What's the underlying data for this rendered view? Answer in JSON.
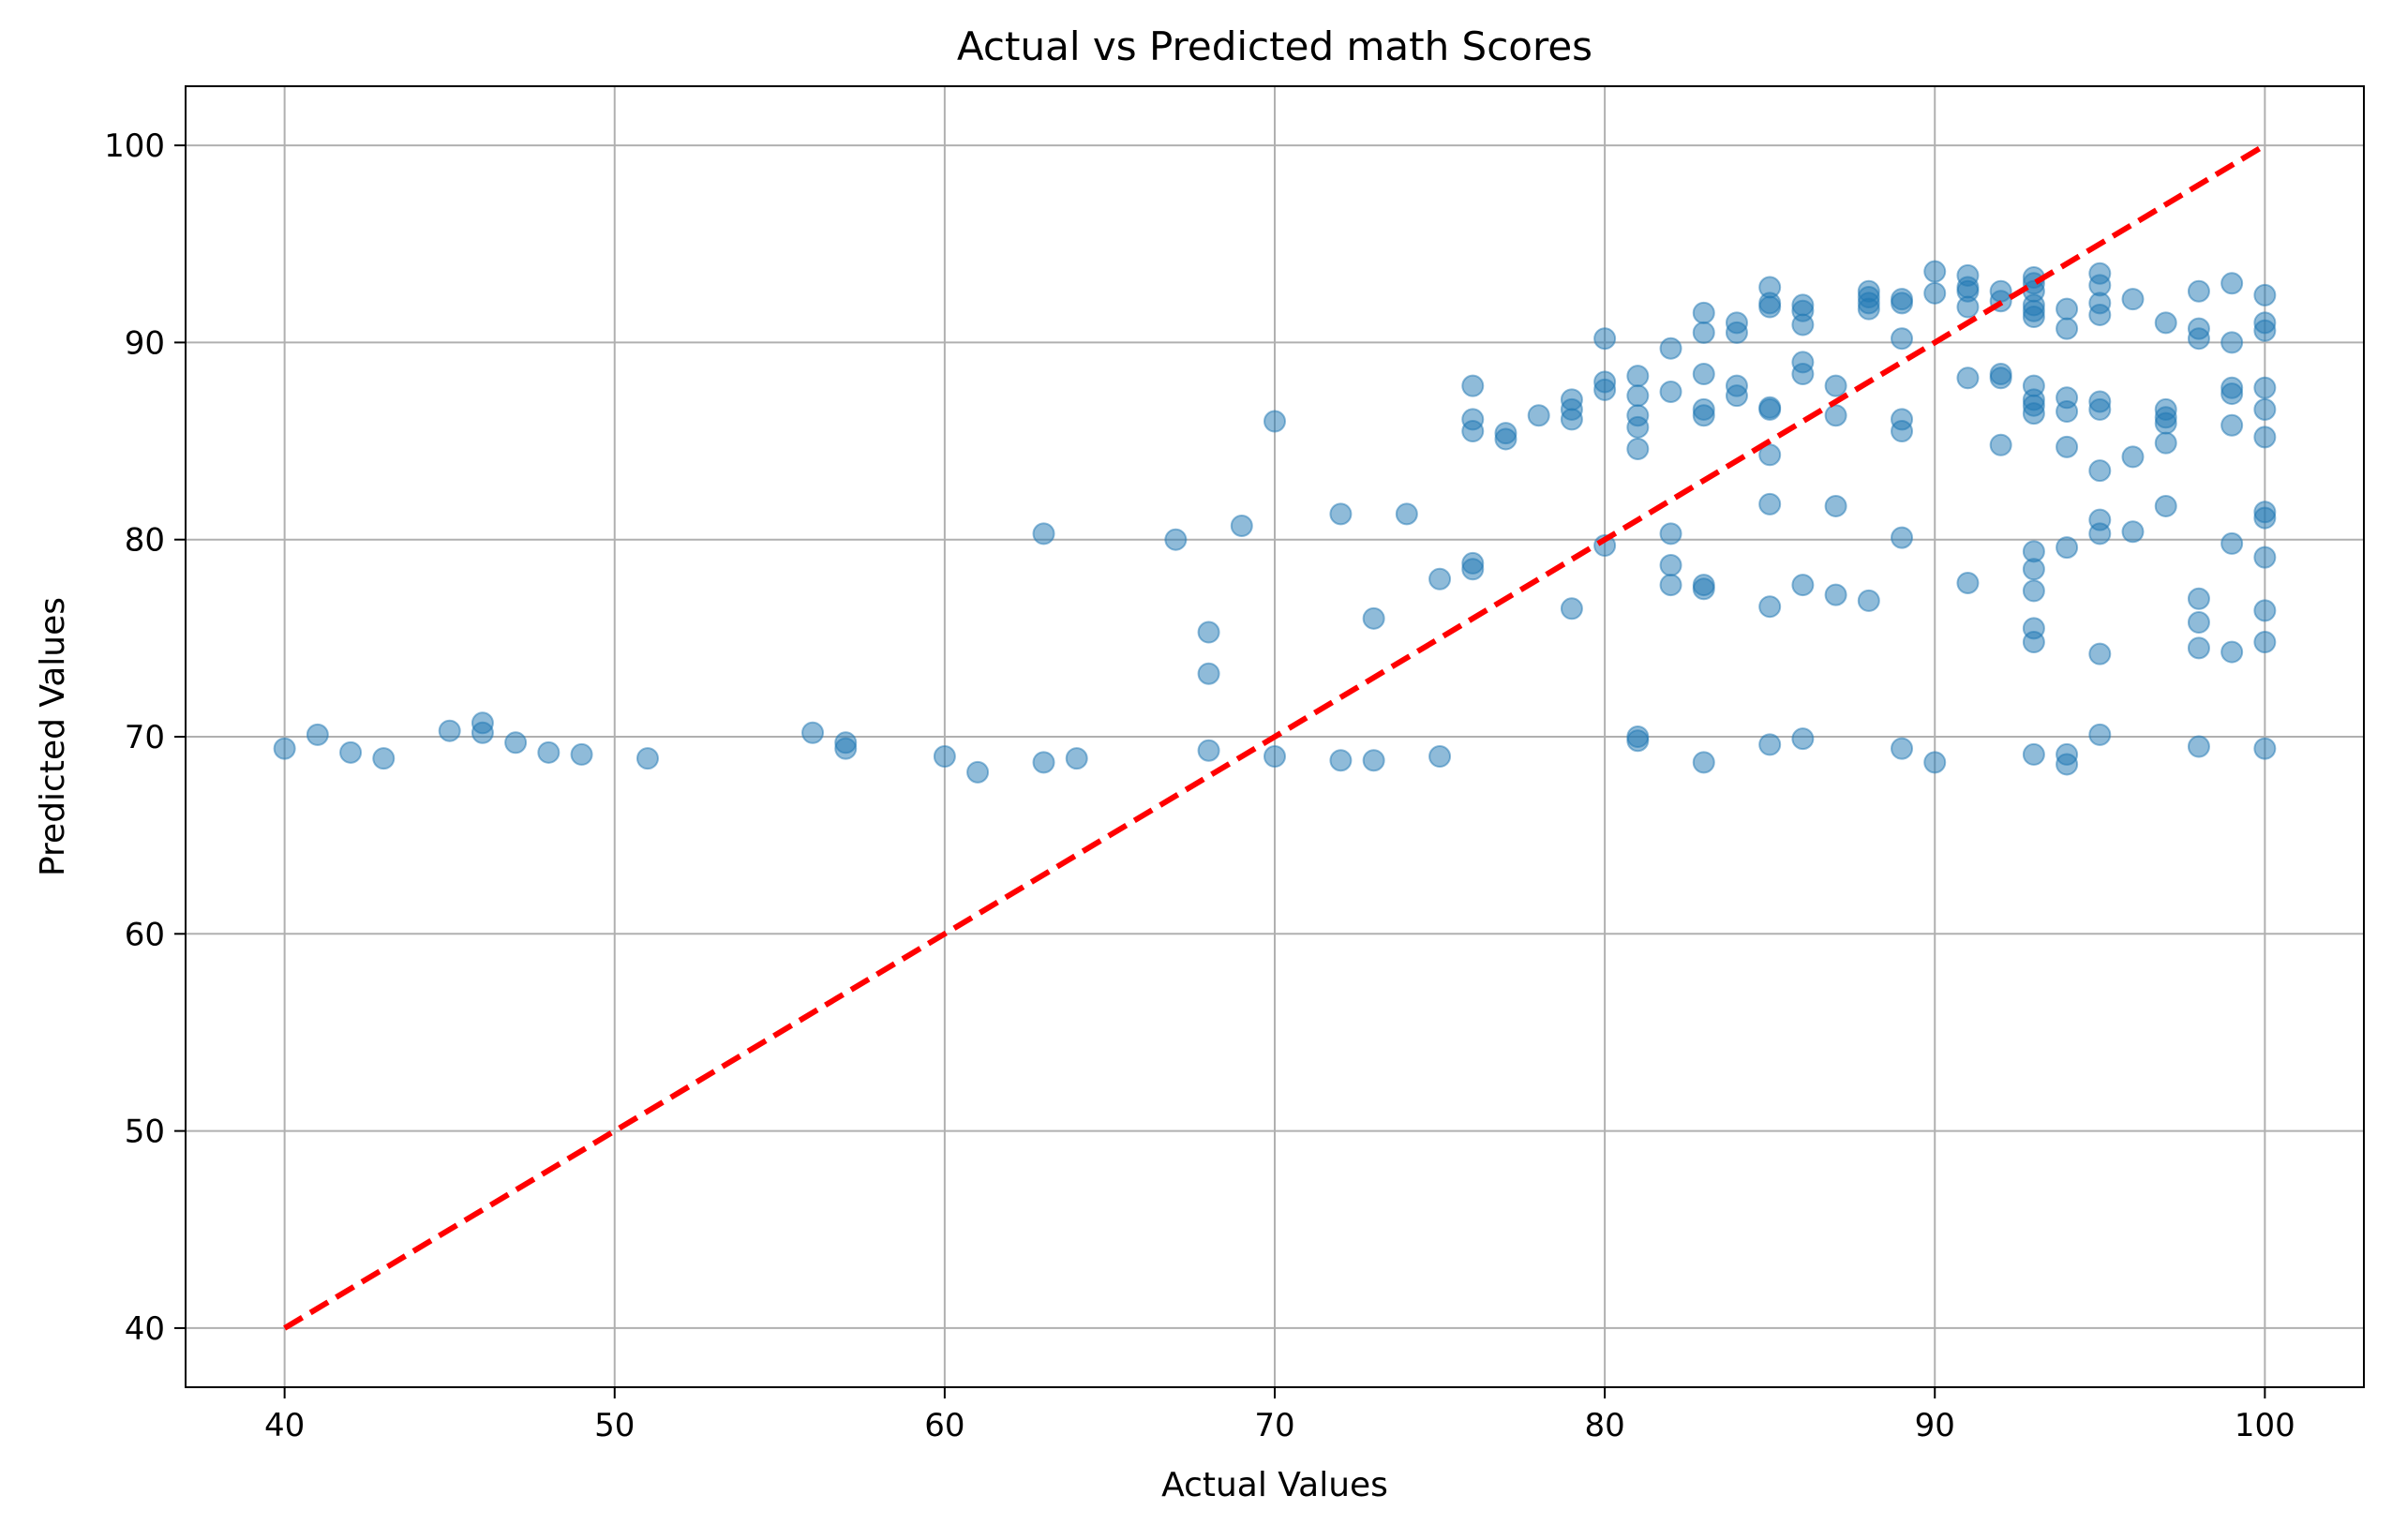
{
  "chart_data": {
    "type": "scatter",
    "title": "Actual vs Predicted math Scores",
    "xlabel": "Actual Values",
    "ylabel": "Predicted Values",
    "xlim": [
      37,
      103
    ],
    "ylim": [
      37,
      103
    ],
    "x_ticks": [
      40,
      50,
      60,
      70,
      80,
      90,
      100
    ],
    "y_ticks": [
      40,
      50,
      60,
      70,
      80,
      90,
      100
    ],
    "grid": true,
    "legend": "none",
    "colors": {
      "points": "#1f77b4",
      "reference_line": "#ff0000",
      "grid": "#b0b0b0"
    },
    "reference_line": {
      "style": "dashed",
      "from": [
        40,
        40
      ],
      "to": [
        100,
        100
      ]
    },
    "series": [
      {
        "points": [
          [
            40,
            69.4
          ],
          [
            41,
            70.1
          ],
          [
            42,
            69.2
          ],
          [
            43,
            68.9
          ],
          [
            45,
            70.3
          ],
          [
            46,
            70.7
          ],
          [
            46,
            70.2
          ],
          [
            47,
            69.7
          ],
          [
            48,
            69.2
          ],
          [
            49,
            69.1
          ],
          [
            51,
            68.9
          ],
          [
            56,
            70.2
          ],
          [
            57,
            69.7
          ],
          [
            57,
            69.4
          ],
          [
            60,
            69.0
          ],
          [
            61,
            68.2
          ],
          [
            63,
            80.3
          ],
          [
            63,
            68.7
          ],
          [
            64,
            68.9
          ],
          [
            67,
            80.0
          ],
          [
            68,
            75.3
          ],
          [
            68,
            73.2
          ],
          [
            68,
            69.3
          ],
          [
            69,
            80.7
          ],
          [
            70,
            86.0
          ],
          [
            70,
            69.0
          ],
          [
            72,
            81.3
          ],
          [
            72,
            68.8
          ],
          [
            73,
            76.0
          ],
          [
            73,
            68.8
          ],
          [
            74,
            81.3
          ],
          [
            75,
            78.0
          ],
          [
            75,
            69.0
          ],
          [
            76,
            87.8
          ],
          [
            76,
            86.1
          ],
          [
            76,
            85.5
          ],
          [
            76,
            78.8
          ],
          [
            76,
            78.5
          ],
          [
            77,
            85.4
          ],
          [
            77,
            85.1
          ],
          [
            78,
            86.3
          ],
          [
            79,
            87.1
          ],
          [
            79,
            86.6
          ],
          [
            79,
            86.1
          ],
          [
            79,
            76.5
          ],
          [
            80,
            90.2
          ],
          [
            80,
            88.0
          ],
          [
            80,
            87.6
          ],
          [
            80,
            79.7
          ],
          [
            81,
            88.3
          ],
          [
            81,
            87.3
          ],
          [
            81,
            86.3
          ],
          [
            81,
            85.7
          ],
          [
            81,
            84.6
          ],
          [
            81,
            70.0
          ],
          [
            81,
            69.8
          ],
          [
            82,
            89.7
          ],
          [
            82,
            87.5
          ],
          [
            82,
            80.3
          ],
          [
            82,
            78.7
          ],
          [
            82,
            77.7
          ],
          [
            83,
            91.5
          ],
          [
            83,
            90.5
          ],
          [
            83,
            88.4
          ],
          [
            83,
            86.6
          ],
          [
            83,
            86.3
          ],
          [
            83,
            77.7
          ],
          [
            83,
            77.5
          ],
          [
            83,
            68.7
          ],
          [
            84,
            91.0
          ],
          [
            84,
            90.5
          ],
          [
            84,
            87.8
          ],
          [
            84,
            87.3
          ],
          [
            85,
            92.8
          ],
          [
            85,
            92.0
          ],
          [
            85,
            91.8
          ],
          [
            85,
            86.7
          ],
          [
            85,
            86.6
          ],
          [
            85,
            84.3
          ],
          [
            85,
            81.8
          ],
          [
            85,
            76.6
          ],
          [
            85,
            69.6
          ],
          [
            86,
            91.9
          ],
          [
            86,
            91.6
          ],
          [
            86,
            90.9
          ],
          [
            86,
            89.0
          ],
          [
            86,
            88.4
          ],
          [
            86,
            77.7
          ],
          [
            86,
            69.9
          ],
          [
            87,
            87.8
          ],
          [
            87,
            86.3
          ],
          [
            87,
            81.7
          ],
          [
            87,
            77.2
          ],
          [
            88,
            92.6
          ],
          [
            88,
            92.3
          ],
          [
            88,
            92.0
          ],
          [
            88,
            91.7
          ],
          [
            88,
            76.9
          ],
          [
            89,
            92.2
          ],
          [
            89,
            92.0
          ],
          [
            89,
            90.2
          ],
          [
            89,
            86.1
          ],
          [
            89,
            85.5
          ],
          [
            89,
            80.1
          ],
          [
            89,
            69.4
          ],
          [
            90,
            93.6
          ],
          [
            90,
            92.5
          ],
          [
            90,
            68.7
          ],
          [
            91,
            93.4
          ],
          [
            91,
            92.8
          ],
          [
            91,
            92.6
          ],
          [
            91,
            91.8
          ],
          [
            91,
            88.2
          ],
          [
            91,
            77.8
          ],
          [
            92,
            92.6
          ],
          [
            92,
            92.1
          ],
          [
            92,
            88.4
          ],
          [
            92,
            88.2
          ],
          [
            92,
            84.8
          ],
          [
            93,
            93.3
          ],
          [
            93,
            93.0
          ],
          [
            93,
            92.6
          ],
          [
            93,
            91.9
          ],
          [
            93,
            91.6
          ],
          [
            93,
            91.3
          ],
          [
            93,
            87.8
          ],
          [
            93,
            87.1
          ],
          [
            93,
            86.8
          ],
          [
            93,
            86.4
          ],
          [
            93,
            79.4
          ],
          [
            93,
            78.5
          ],
          [
            93,
            77.4
          ],
          [
            93,
            75.5
          ],
          [
            93,
            74.8
          ],
          [
            93,
            69.1
          ],
          [
            94,
            91.7
          ],
          [
            94,
            90.7
          ],
          [
            94,
            87.2
          ],
          [
            94,
            86.5
          ],
          [
            94,
            84.7
          ],
          [
            94,
            79.6
          ],
          [
            94,
            69.1
          ],
          [
            94,
            68.6
          ],
          [
            95,
            93.5
          ],
          [
            95,
            92.9
          ],
          [
            95,
            92.0
          ],
          [
            95,
            91.4
          ],
          [
            95,
            87.0
          ],
          [
            95,
            86.6
          ],
          [
            95,
            83.5
          ],
          [
            95,
            81.0
          ],
          [
            95,
            80.3
          ],
          [
            95,
            74.2
          ],
          [
            95,
            70.1
          ],
          [
            96,
            92.2
          ],
          [
            96,
            84.2
          ],
          [
            96,
            80.4
          ],
          [
            97,
            91.0
          ],
          [
            97,
            86.6
          ],
          [
            97,
            86.2
          ],
          [
            97,
            85.9
          ],
          [
            97,
            84.9
          ],
          [
            97,
            81.7
          ],
          [
            98,
            92.6
          ],
          [
            98,
            90.7
          ],
          [
            98,
            90.2
          ],
          [
            98,
            77.0
          ],
          [
            98,
            75.8
          ],
          [
            98,
            74.5
          ],
          [
            98,
            69.5
          ],
          [
            99,
            93.0
          ],
          [
            99,
            90.0
          ],
          [
            99,
            87.7
          ],
          [
            99,
            87.4
          ],
          [
            99,
            85.8
          ],
          [
            99,
            79.8
          ],
          [
            99,
            74.3
          ],
          [
            100,
            92.4
          ],
          [
            100,
            91.0
          ],
          [
            100,
            90.6
          ],
          [
            100,
            87.7
          ],
          [
            100,
            86.6
          ],
          [
            100,
            85.2
          ],
          [
            100,
            81.4
          ],
          [
            100,
            81.1
          ],
          [
            100,
            79.1
          ],
          [
            100,
            76.4
          ],
          [
            100,
            74.8
          ],
          [
            100,
            69.4
          ]
        ]
      }
    ]
  }
}
